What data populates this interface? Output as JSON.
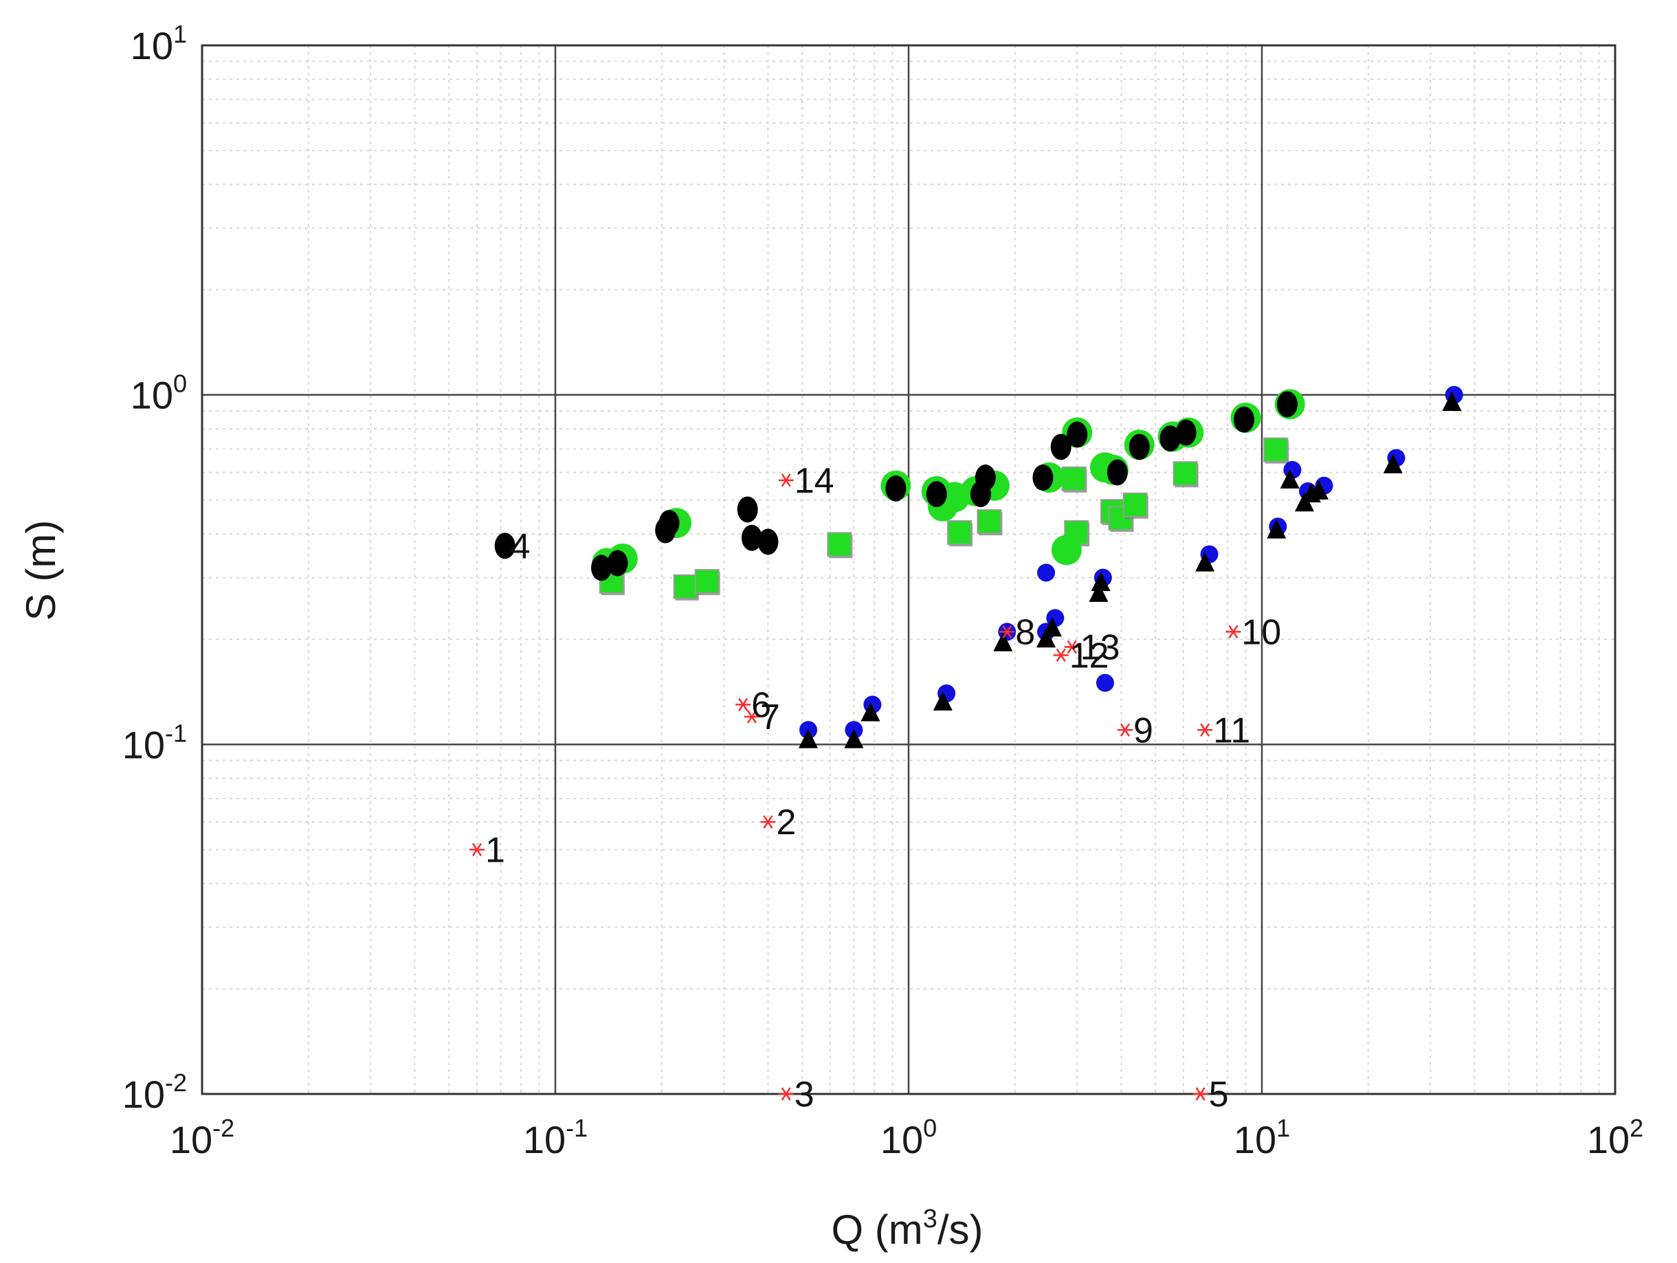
{
  "chart_data": {
    "type": "scatter",
    "scale": "log-log",
    "title": "",
    "xlabel": {
      "prefix": "Q (m",
      "sup": "3",
      "suffix": "/s)"
    },
    "ylabel": "S (m)",
    "xlim": [
      0.01,
      100
    ],
    "ylim": [
      0.01,
      10
    ],
    "x_ticks": [
      {
        "base": "10",
        "exp": "-2",
        "value": 0.01
      },
      {
        "base": "10",
        "exp": "-1",
        "value": 0.1
      },
      {
        "base": "10",
        "exp": "0",
        "value": 1
      },
      {
        "base": "10",
        "exp": "1",
        "value": 10
      },
      {
        "base": "10",
        "exp": "2",
        "value": 100
      }
    ],
    "y_ticks": [
      {
        "base": "10",
        "exp": "-2",
        "value": 0.01
      },
      {
        "base": "10",
        "exp": "-1",
        "value": 0.1
      },
      {
        "base": "10",
        "exp": "0",
        "value": 1
      },
      {
        "base": "10",
        "exp": "1",
        "value": 10
      }
    ],
    "grid": true,
    "colors": {
      "measured": "#ff2a2a",
      "green_squares": "#22dd22",
      "black_circles": "#000000",
      "blue_circles": "#1010e0",
      "black_triangles": "#000000",
      "grid_major": "#444444",
      "grid_minor": "#d8d8d8"
    },
    "series": [
      {
        "name": "measured",
        "marker": "asterisk",
        "points": [
          {
            "x": 0.06,
            "y": 0.05,
            "label": "1"
          },
          {
            "x": 0.4,
            "y": 0.06,
            "label": "2"
          },
          {
            "x": 0.45,
            "y": 0.01,
            "label": "3"
          },
          {
            "x": 6.7,
            "y": 0.01,
            "label": "5"
          },
          {
            "x": 0.34,
            "y": 0.13,
            "label": "6"
          },
          {
            "x": 0.36,
            "y": 0.12,
            "label": "7"
          },
          {
            "x": 1.9,
            "y": 0.21,
            "label": "8"
          },
          {
            "x": 4.1,
            "y": 0.11,
            "label": "9"
          },
          {
            "x": 8.3,
            "y": 0.21,
            "label": "10"
          },
          {
            "x": 6.9,
            "y": 0.11,
            "label": "11"
          },
          {
            "x": 2.7,
            "y": 0.18,
            "label": "12"
          },
          {
            "x": 2.9,
            "y": 0.19,
            "label": "13"
          },
          {
            "x": 0.45,
            "y": 0.57,
            "label": "14"
          }
        ],
        "text_only": [
          {
            "x": 0.072,
            "y": 0.37,
            "label": "4"
          }
        ]
      },
      {
        "name": "green_squares",
        "marker": "square",
        "points": [
          {
            "x": 0.145,
            "y": 0.29
          },
          {
            "x": 0.235,
            "y": 0.28
          },
          {
            "x": 0.27,
            "y": 0.29
          },
          {
            "x": 0.64,
            "y": 0.37
          },
          {
            "x": 1.4,
            "y": 0.4
          },
          {
            "x": 1.7,
            "y": 0.43
          },
          {
            "x": 2.95,
            "y": 0.57
          },
          {
            "x": 3.0,
            "y": 0.4
          },
          {
            "x": 3.8,
            "y": 0.46
          },
          {
            "x": 4.0,
            "y": 0.44
          },
          {
            "x": 4.4,
            "y": 0.48
          },
          {
            "x": 6.1,
            "y": 0.59
          },
          {
            "x": 11.0,
            "y": 0.69
          }
        ]
      },
      {
        "name": "green_circles",
        "marker": "circle",
        "points": [
          {
            "x": 0.14,
            "y": 0.33
          },
          {
            "x": 0.155,
            "y": 0.34
          },
          {
            "x": 0.22,
            "y": 0.43
          },
          {
            "x": 0.92,
            "y": 0.55
          },
          {
            "x": 1.2,
            "y": 0.53
          },
          {
            "x": 1.25,
            "y": 0.48
          },
          {
            "x": 1.35,
            "y": 0.51
          },
          {
            "x": 1.55,
            "y": 0.53
          },
          {
            "x": 1.75,
            "y": 0.55
          },
          {
            "x": 2.5,
            "y": 0.58
          },
          {
            "x": 2.8,
            "y": 0.36
          },
          {
            "x": 3.0,
            "y": 0.78
          },
          {
            "x": 3.6,
            "y": 0.62
          },
          {
            "x": 3.8,
            "y": 0.61
          },
          {
            "x": 4.5,
            "y": 0.72
          },
          {
            "x": 5.6,
            "y": 0.76
          },
          {
            "x": 6.2,
            "y": 0.78
          },
          {
            "x": 9.0,
            "y": 0.86
          },
          {
            "x": 12.0,
            "y": 0.94
          }
        ]
      },
      {
        "name": "black_circles",
        "marker": "circle",
        "points": [
          {
            "x": 0.072,
            "y": 0.37
          },
          {
            "x": 0.135,
            "y": 0.32
          },
          {
            "x": 0.15,
            "y": 0.33
          },
          {
            "x": 0.205,
            "y": 0.41
          },
          {
            "x": 0.21,
            "y": 0.43
          },
          {
            "x": 0.35,
            "y": 0.47
          },
          {
            "x": 0.36,
            "y": 0.39
          },
          {
            "x": 0.4,
            "y": 0.38
          },
          {
            "x": 0.92,
            "y": 0.54
          },
          {
            "x": 1.2,
            "y": 0.52
          },
          {
            "x": 1.6,
            "y": 0.52
          },
          {
            "x": 1.65,
            "y": 0.58
          },
          {
            "x": 2.4,
            "y": 0.58
          },
          {
            "x": 2.7,
            "y": 0.71
          },
          {
            "x": 3.0,
            "y": 0.77
          },
          {
            "x": 3.9,
            "y": 0.6
          },
          {
            "x": 4.5,
            "y": 0.71
          },
          {
            "x": 5.5,
            "y": 0.75
          },
          {
            "x": 6.1,
            "y": 0.78
          },
          {
            "x": 8.9,
            "y": 0.85
          },
          {
            "x": 11.8,
            "y": 0.94
          }
        ]
      },
      {
        "name": "blue_circles",
        "marker": "circle",
        "points": [
          {
            "x": 0.52,
            "y": 0.11
          },
          {
            "x": 0.7,
            "y": 0.11
          },
          {
            "x": 0.79,
            "y": 0.13
          },
          {
            "x": 1.28,
            "y": 0.14
          },
          {
            "x": 1.9,
            "y": 0.21
          },
          {
            "x": 2.45,
            "y": 0.31
          },
          {
            "x": 2.45,
            "y": 0.21
          },
          {
            "x": 2.6,
            "y": 0.23
          },
          {
            "x": 3.55,
            "y": 0.3
          },
          {
            "x": 3.6,
            "y": 0.15
          },
          {
            "x": 7.1,
            "y": 0.35
          },
          {
            "x": 11.1,
            "y": 0.42
          },
          {
            "x": 12.2,
            "y": 0.61
          },
          {
            "x": 13.5,
            "y": 0.53
          },
          {
            "x": 15.0,
            "y": 0.55
          },
          {
            "x": 24.0,
            "y": 0.66
          },
          {
            "x": 35.0,
            "y": 1.0
          }
        ]
      },
      {
        "name": "black_triangles",
        "marker": "triangle",
        "points": [
          {
            "x": 0.52,
            "y": 0.103
          },
          {
            "x": 0.7,
            "y": 0.103
          },
          {
            "x": 0.78,
            "y": 0.123
          },
          {
            "x": 1.25,
            "y": 0.132
          },
          {
            "x": 1.85,
            "y": 0.195
          },
          {
            "x": 2.45,
            "y": 0.2
          },
          {
            "x": 2.55,
            "y": 0.215
          },
          {
            "x": 3.45,
            "y": 0.27
          },
          {
            "x": 3.5,
            "y": 0.29
          },
          {
            "x": 6.9,
            "y": 0.33
          },
          {
            "x": 11.0,
            "y": 0.41
          },
          {
            "x": 12.0,
            "y": 0.57
          },
          {
            "x": 13.2,
            "y": 0.49
          },
          {
            "x": 13.8,
            "y": 0.52
          },
          {
            "x": 14.5,
            "y": 0.53
          },
          {
            "x": 23.5,
            "y": 0.63
          },
          {
            "x": 34.5,
            "y": 0.95
          }
        ]
      }
    ]
  }
}
